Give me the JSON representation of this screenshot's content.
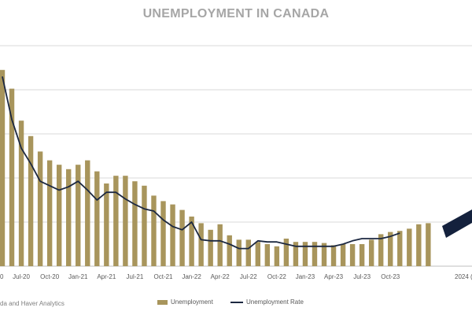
{
  "chart_data": {
    "type": "bar",
    "title": "UNEMPLOYMENT IN CANADA",
    "x_tick_labels": [
      "Jul-20",
      "Oct-20",
      "Jan-21",
      "Apr-21",
      "Jul-21",
      "Oct-21",
      "Jan-22",
      "Apr-22",
      "Jul-22",
      "Oct-22",
      "Jan-23",
      "Apr-23",
      "Jul-23",
      "Oct-23",
      "2024 ("
    ],
    "first_tick_fragment": "0",
    "series": [
      {
        "name": "Unemployment",
        "kind": "bar",
        "values": [
          2.58,
          2.41,
          2.12,
          1.98,
          1.84,
          1.76,
          1.72,
          1.68,
          1.72,
          1.76,
          1.66,
          1.55,
          1.62,
          1.62,
          1.57,
          1.53,
          1.44,
          1.39,
          1.36,
          1.31,
          1.25,
          1.19,
          1.13,
          1.18,
          1.08,
          1.04,
          1.04,
          1.02,
          1.0,
          0.98,
          1.05,
          1.02,
          1.02,
          1.02,
          1.01,
          0.99,
          1.0,
          1.0,
          1.0,
          1.04,
          1.09,
          1.11,
          1.12,
          1.14,
          1.18,
          1.19
        ]
      },
      {
        "name": "Unemployment Rate",
        "kind": "line",
        "values": [
          2.52,
          2.13,
          1.87,
          1.73,
          1.57,
          1.53,
          1.49,
          1.52,
          1.57,
          1.49,
          1.4,
          1.47,
          1.47,
          1.41,
          1.36,
          1.32,
          1.3,
          1.22,
          1.16,
          1.13,
          1.2,
          1.04,
          1.03,
          1.03,
          1.0,
          0.96,
          0.96,
          1.03,
          1.02,
          1.02,
          1.0,
          0.98,
          0.98,
          0.98,
          0.98,
          0.98,
          1.0,
          1.03,
          1.05,
          1.05,
          1.05,
          1.07,
          1.1
        ]
      }
    ],
    "projection_arrow": true,
    "ylim": [
      0.8,
      2.8
    ],
    "grid": true,
    "legend_position": "bottom-center"
  },
  "source_note": "da and Haver Analytics",
  "colors": {
    "bar": "#a8955c",
    "line": "#1c2841",
    "arrow": "#14213d",
    "grid": "#d9d9d9",
    "title": "#a6a6a6"
  }
}
